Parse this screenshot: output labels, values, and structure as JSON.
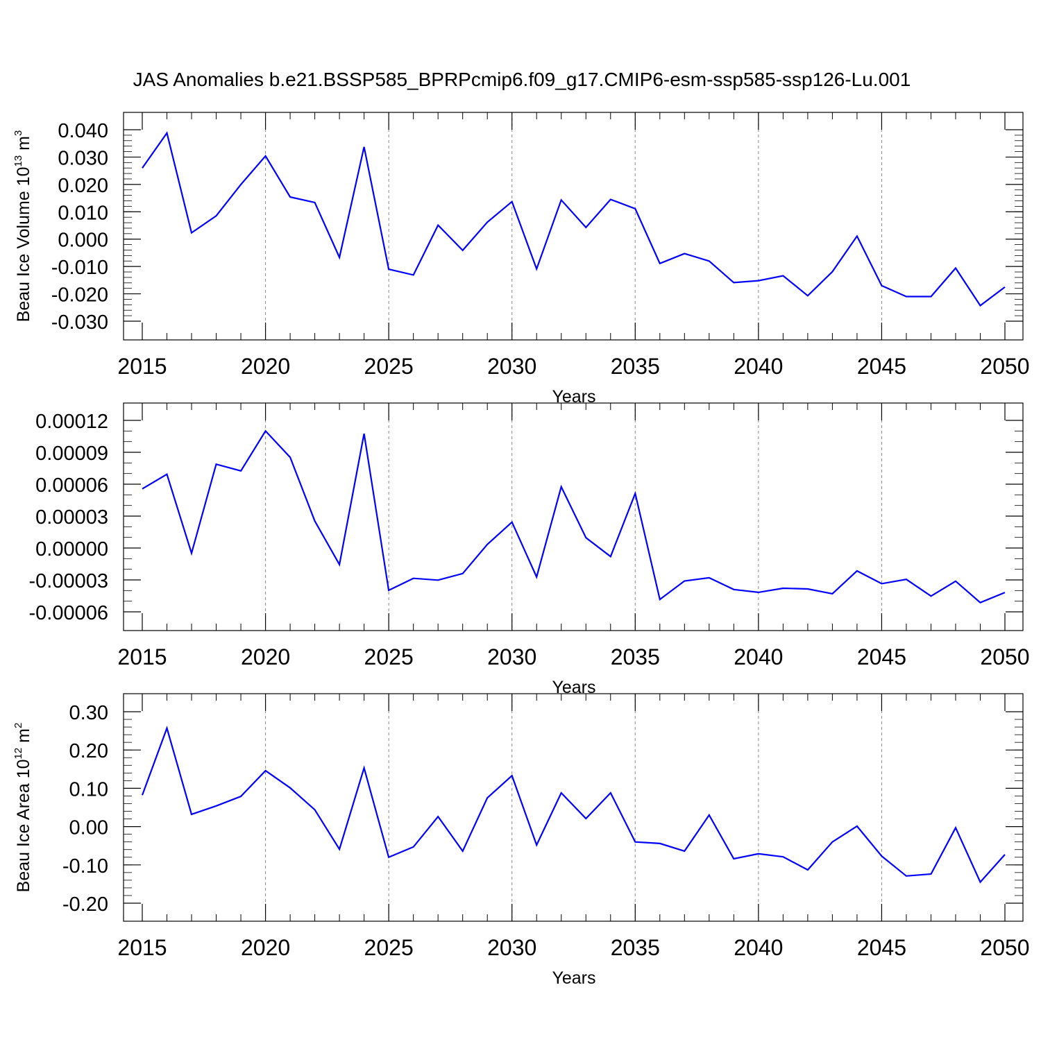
{
  "chart_data": {
    "type": "line",
    "title": "JAS Anomalies b.e21.BSSP585_BPRPcmip6.f09_g17.CMIP6-esm-ssp585-ssp126-Lu.001",
    "line_color": "#0000ff",
    "grid": "vertical dashed lines at major x ticks",
    "panels": [
      {
        "ylabel": {
          "text": "Beau Ice Volume 10",
          "sup": "13",
          "unit": " m",
          "unit_sup": "3"
        },
        "xlabel": "Years",
        "xlim": [
          2015,
          2050
        ],
        "ylim": [
          -0.03,
          0.046
        ],
        "x_ticks": [
          2015,
          2020,
          2025,
          2030,
          2035,
          2040,
          2045,
          2050
        ],
        "y_ticks": [
          0.04,
          0.03,
          0.02,
          0.01,
          0.0,
          -0.01,
          -0.02,
          -0.03
        ],
        "y_tick_labels": [
          "0.040",
          "0.030",
          "0.020",
          "0.010",
          "0.000",
          "-0.010",
          "-0.020",
          "-0.030"
        ],
        "y_minor_step": 0.002,
        "series": [
          {
            "x": [
              2015,
              2016,
              2017,
              2018,
              2019,
              2020,
              2021,
              2022,
              2023,
              2024,
              2025,
              2026,
              2027,
              2028,
              2029,
              2030,
              2031,
              2032,
              2033,
              2034,
              2035,
              2036,
              2037,
              2038,
              2039,
              2040,
              2041,
              2042,
              2043,
              2044,
              2045,
              2046,
              2047,
              2048,
              2049,
              2050
            ],
            "values": [
              0.026,
              0.0388,
              0.0023,
              0.0085,
              0.02,
              0.0304,
              0.0154,
              0.0134,
              -0.0067,
              0.0337,
              -0.011,
              -0.0131,
              0.0051,
              -0.0041,
              0.0062,
              0.0137,
              -0.0109,
              0.0143,
              0.0043,
              0.0145,
              0.0111,
              -0.0089,
              -0.0053,
              -0.008,
              -0.0159,
              -0.0152,
              -0.0134,
              -0.0207,
              -0.0119,
              0.0011,
              -0.017,
              -0.021,
              -0.021,
              -0.0106,
              -0.0243,
              -0.0175
            ]
          }
        ]
      },
      {
        "ylabel": {
          "text": "",
          "sup": "",
          "unit": "",
          "unit_sup": ""
        },
        "xlabel": "Years",
        "xlim": [
          2015,
          2050
        ],
        "ylim": [
          -6e-05,
          0.000137
        ],
        "x_ticks": [
          2015,
          2020,
          2025,
          2030,
          2035,
          2040,
          2045,
          2050
        ],
        "y_ticks": [
          0.00012,
          9e-05,
          6e-05,
          3e-05,
          0.0,
          -3e-05,
          -6e-05
        ],
        "y_tick_labels": [
          "0.00012",
          "0.00009",
          "0.00006",
          "0.00003",
          "0.00000",
          "-0.00003",
          "-0.00006"
        ],
        "y_minor_step": 1e-05,
        "series": [
          {
            "x": [
              2015,
              2016,
              2017,
              2018,
              2019,
              2020,
              2021,
              2022,
              2023,
              2024,
              2025,
              2026,
              2027,
              2028,
              2029,
              2030,
              2031,
              2032,
              2033,
              2034,
              2035,
              2036,
              2037,
              2038,
              2039,
              2040,
              2041,
              2042,
              2043,
              2044,
              2045,
              2046,
              2047,
              2048,
              2049,
              2050
            ],
            "values": [
              5.56e-05,
              6.93e-05,
              -4.9e-06,
              7.88e-05,
              7.25e-05,
              0.00011,
              8.53e-05,
              2.54e-05,
              -1.55e-05,
              0.0001075,
              -3.98e-05,
              -2.85e-05,
              -3.02e-05,
              -2.4e-05,
              3.4e-06,
              2.43e-05,
              -2.72e-05,
              5.75e-05,
              9.7e-06,
              -8e-06,
              5.13e-05,
              -4.83e-05,
              -3.1e-05,
              -2.8e-05,
              -3.9e-05,
              -4.17e-05,
              -3.78e-05,
              -3.85e-05,
              -4.3e-05,
              -2.15e-05,
              -3.35e-05,
              -2.95e-05,
              -4.52e-05,
              -3.12e-05,
              -5.13e-05,
              -4.18e-05
            ]
          }
        ]
      },
      {
        "ylabel": {
          "text": "Beau Ice Area 10",
          "sup": "12",
          "unit": " m",
          "unit_sup": "2"
        },
        "xlabel": "Years",
        "xlim": [
          2015,
          2050
        ],
        "ylim": [
          -0.2,
          0.35
        ],
        "x_ticks": [
          2015,
          2020,
          2025,
          2030,
          2035,
          2040,
          2045,
          2050
        ],
        "y_ticks": [
          0.3,
          0.2,
          0.1,
          0.0,
          -0.1,
          -0.2
        ],
        "y_tick_labels": [
          "0.30",
          "0.20",
          "0.10",
          "0.00",
          "-0.10",
          "-0.20"
        ],
        "y_minor_step": 0.02,
        "series": [
          {
            "x": [
              2015,
              2016,
              2017,
              2018,
              2019,
              2020,
              2021,
              2022,
              2023,
              2024,
              2025,
              2026,
              2027,
              2028,
              2029,
              2030,
              2031,
              2032,
              2033,
              2034,
              2035,
              2036,
              2037,
              2038,
              2039,
              2040,
              2041,
              2042,
              2043,
              2044,
              2045,
              2046,
              2047,
              2048,
              2049,
              2050
            ],
            "values": [
              0.082,
              0.257,
              0.032,
              0.054,
              0.079,
              0.146,
              0.101,
              0.044,
              -0.059,
              0.153,
              -0.08,
              -0.053,
              0.026,
              -0.064,
              0.075,
              0.133,
              -0.048,
              0.088,
              0.021,
              0.088,
              -0.04,
              -0.044,
              -0.064,
              0.03,
              -0.084,
              -0.071,
              -0.079,
              -0.113,
              -0.04,
              0.001,
              -0.077,
              -0.129,
              -0.124,
              -0.003,
              -0.145,
              -0.073
            ]
          }
        ]
      }
    ]
  }
}
